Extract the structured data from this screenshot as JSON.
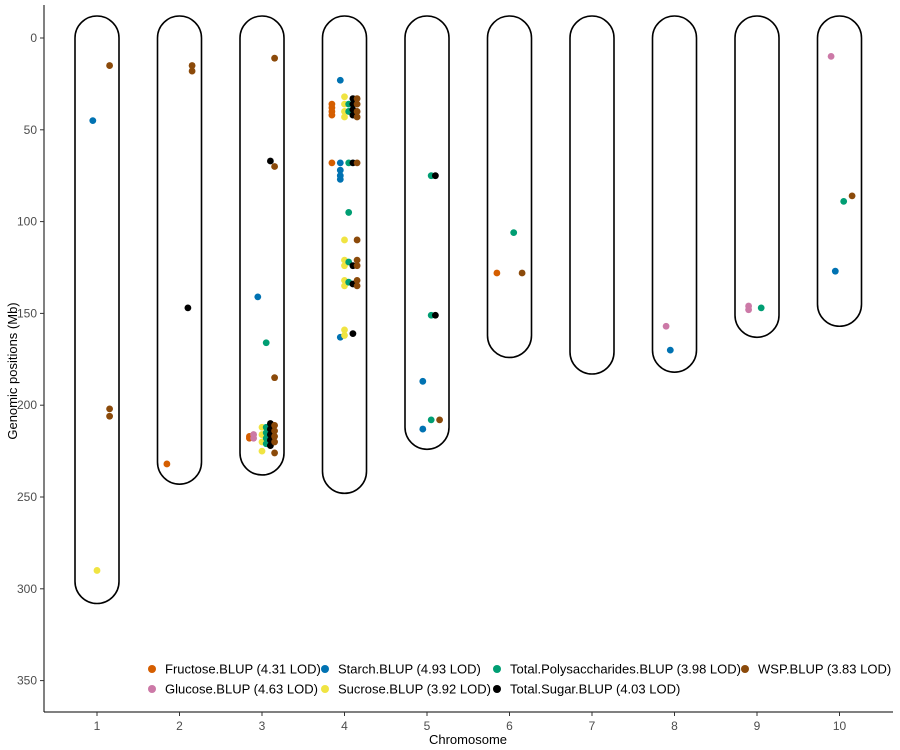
{
  "chart_data": {
    "type": "scatter",
    "title": "",
    "xlabel": "Chromosome",
    "ylabel": "Genomic positions (Mb)",
    "x_categories": [
      "1",
      "2",
      "3",
      "4",
      "5",
      "6",
      "7",
      "8",
      "9",
      "10"
    ],
    "ylim": [
      0,
      370
    ],
    "y_reversed": true,
    "yticks": [
      0,
      50,
      100,
      150,
      200,
      250,
      300,
      350
    ],
    "grid": false,
    "legend_position": "bottom-inside",
    "chromosome_lengths": [
      308,
      243,
      238,
      248,
      224,
      174,
      183,
      182,
      163,
      157
    ],
    "series": [
      {
        "name": "Fructose.BLUP (4.31 LOD)",
        "color": "#D55E00",
        "points": [
          [
            2,
            232
          ],
          [
            3,
            217
          ],
          [
            3,
            218
          ],
          [
            4,
            36
          ],
          [
            4,
            38
          ],
          [
            4,
            40
          ],
          [
            4,
            42
          ],
          [
            4,
            68
          ],
          [
            6,
            128
          ]
        ]
      },
      {
        "name": "Glucose.BLUP (4.63 LOD)",
        "color": "#CC79A7",
        "points": [
          [
            3,
            218
          ],
          [
            3,
            216
          ],
          [
            8,
            157
          ],
          [
            9,
            146
          ],
          [
            9,
            148
          ],
          [
            10,
            10
          ]
        ]
      },
      {
        "name": "Starch.BLUP (4.93 LOD)",
        "color": "#0072B2",
        "points": [
          [
            1,
            45
          ],
          [
            3,
            141
          ],
          [
            4,
            23
          ],
          [
            4,
            68
          ],
          [
            4,
            72
          ],
          [
            4,
            75
          ],
          [
            4,
            77
          ],
          [
            4,
            163
          ],
          [
            5,
            187
          ],
          [
            5,
            213
          ],
          [
            8,
            170
          ],
          [
            10,
            127
          ]
        ]
      },
      {
        "name": "Sucrose.BLUP (3.92 LOD)",
        "color": "#F0E442",
        "points": [
          [
            1,
            290
          ],
          [
            3,
            212
          ],
          [
            3,
            216
          ],
          [
            3,
            220
          ],
          [
            3,
            225
          ],
          [
            4,
            32
          ],
          [
            4,
            36
          ],
          [
            4,
            40
          ],
          [
            4,
            43
          ],
          [
            4,
            110
          ],
          [
            4,
            121
          ],
          [
            4,
            124
          ],
          [
            4,
            132
          ],
          [
            4,
            135
          ],
          [
            4,
            159
          ],
          [
            4,
            162
          ]
        ]
      },
      {
        "name": "Total.Polysaccharides.BLUP (3.98 LOD)",
        "color": "#009E73",
        "points": [
          [
            3,
            166
          ],
          [
            3,
            212
          ],
          [
            3,
            215
          ],
          [
            3,
            218
          ],
          [
            3,
            221
          ],
          [
            4,
            36
          ],
          [
            4,
            40
          ],
          [
            4,
            68
          ],
          [
            4,
            95
          ],
          [
            4,
            122
          ],
          [
            4,
            133
          ],
          [
            5,
            75
          ],
          [
            5,
            151
          ],
          [
            5,
            208
          ],
          [
            6,
            106
          ],
          [
            9,
            147
          ],
          [
            10,
            89
          ]
        ]
      },
      {
        "name": "Total.Sugar.BLUP (4.03 LOD)",
        "color": "#000000",
        "points": [
          [
            2,
            147
          ],
          [
            3,
            67
          ],
          [
            3,
            210
          ],
          [
            3,
            213
          ],
          [
            3,
            216
          ],
          [
            3,
            219
          ],
          [
            3,
            222
          ],
          [
            4,
            33
          ],
          [
            4,
            36
          ],
          [
            4,
            39
          ],
          [
            4,
            42
          ],
          [
            4,
            68
          ],
          [
            4,
            124
          ],
          [
            4,
            134
          ],
          [
            4,
            161
          ],
          [
            5,
            75
          ],
          [
            5,
            151
          ]
        ]
      },
      {
        "name": "WSP.BLUP (3.83 LOD)",
        "color": "#8B4A0A",
        "points": [
          [
            1,
            15
          ],
          [
            1,
            202
          ],
          [
            1,
            206
          ],
          [
            2,
            15
          ],
          [
            2,
            18
          ],
          [
            3,
            11
          ],
          [
            3,
            70
          ],
          [
            3,
            185
          ],
          [
            3,
            211
          ],
          [
            3,
            214
          ],
          [
            3,
            217
          ],
          [
            3,
            220
          ],
          [
            3,
            226
          ],
          [
            4,
            33
          ],
          [
            4,
            36
          ],
          [
            4,
            40
          ],
          [
            4,
            43
          ],
          [
            4,
            68
          ],
          [
            4,
            110
          ],
          [
            4,
            121
          ],
          [
            4,
            124
          ],
          [
            4,
            132
          ],
          [
            4,
            135
          ],
          [
            5,
            208
          ],
          [
            6,
            128
          ],
          [
            10,
            86
          ]
        ]
      }
    ]
  }
}
